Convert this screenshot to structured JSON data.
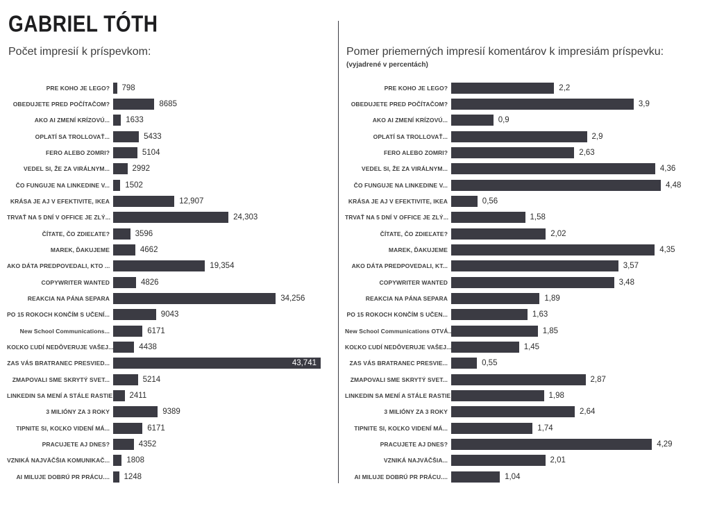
{
  "page_title": "GABRIEL TÓTH",
  "colors": {
    "bar": "#3b3b43",
    "text": "#3c3c3c",
    "inline_value": "#ffffff"
  },
  "chart_data": [
    {
      "type": "bar",
      "orientation": "horizontal",
      "title": "Počet impresií k príspevkom:",
      "subtitle": "",
      "categories": [
        "PRE KOHO JE LEGO?",
        "OBEDUJETE PRED POČÍTAČOM?",
        "AKO AI ZMENÍ KRÍZOVÚ...",
        "OPLATÍ SA TROLLOVAŤ...",
        "FERO ALEBO ZOMRI?",
        "VEDEL SI, ŽE ZA VIRÁLNYM...",
        "ČO FUNGUJE NA LINKEDINE V...",
        "KRÁSA JE AJ V EFEKTIVITE, IKEA",
        "TRVAŤ NA 5 DNÍ V OFFICE JE ZLÝ...",
        "ČÍTATE, ČO ZDIEĽATE?",
        "MAREK, ĎAKUJEME",
        "AKO DÁTA PREDPOVEDALI, KTO ...",
        "COPYWRITER WANTED",
        "REAKCIA NA PÁNA SEPARA",
        "PO 15 ROKOCH KONČÍM S UČENÍ...",
        "New School Communications...",
        "KOĽKO ĽUDÍ NEDÔVERUJE VAŠEJ...",
        "ZAS VÁS BRATRANEC PRESVIED...",
        "ZMAPOVALI SME SKRYTÝ SVET...",
        "LINKEDIN SA MENÍ A STÁLE RASTIE",
        "3 MILIÓNY ZA 3 ROKY",
        "TIPNITE SI, KOĽKO VIDENÍ MÁ...",
        "PRACUJETE AJ DNES?",
        "VZNIKÁ NAJVÄČŠIA KOMUNIKAČ...",
        "AI MILUJE DOBRÚ PR PRÁCU...."
      ],
      "values": [
        798,
        8685,
        1633,
        5433,
        5104,
        2992,
        1502,
        12907,
        24303,
        3596,
        4662,
        19354,
        4826,
        34256,
        9043,
        6171,
        4438,
        43741,
        5214,
        2411,
        9389,
        6171,
        4352,
        1808,
        1248
      ],
      "value_labels": [
        "798",
        "8685",
        "1633",
        "5433",
        "5104",
        "2992",
        "1502",
        "12,907",
        "24,303",
        "3596",
        "4662",
        "19,354",
        "4826",
        "34,256",
        "9043",
        "6171",
        "4438",
        "43,741",
        "5214",
        "2411",
        "9389",
        "6171",
        "4352",
        "1808",
        "1248"
      ],
      "xlim": [
        0,
        43741
      ],
      "grid": false,
      "legend": "none"
    },
    {
      "type": "bar",
      "orientation": "horizontal",
      "title": "Pomer priemerných impresií komentárov k impresiám príspevku:",
      "subtitle": "(vyjadrené v percentách)",
      "categories": [
        "PRE KOHO JE LEGO?",
        "OBEDUJETE PRED POČÍTAČOM?",
        "AKO AI ZMENÍ KRÍZOVÚ...",
        "OPLATÍ SA TROLLOVAŤ...",
        "FERO ALEBO ZOMRI?",
        "VEDEL SI, ŽE ZA VIRÁLNYM...",
        "ČO FUNGUJE NA LINKEDINE V...",
        "KRÁSA JE AJ V EFEKTIVITE, IKEA",
        "TRVAŤ NA 5 DNÍ V OFFICE JE ZLÝ...",
        "ČÍTATE, ČO ZDIEĽATE?",
        "MAREK, ĎAKUJEME",
        "AKO DÁTA PREDPOVEDALI, KT...",
        "COPYWRITER WANTED",
        "REAKCIA NA PÁNA SEPARA",
        "PO 15 ROKOCH KONČÍM S UČEN...",
        "New School Communications OTVÁ...",
        "KOĽKO ĽUDÍ NEDÔVERUJE VAŠEJ...",
        "ZAS VÁS BRATRANEC PRESVIE...",
        "ZMAPOVALI SME SKRYTÝ SVET...",
        "LINKEDIN SA MENÍ A STÁLE RASTIE",
        "3 MILIÓNY ZA 3 ROKY",
        "TIPNITE SI, KOĽKO VIDENÍ MÁ...",
        "PRACUJETE AJ DNES?",
        "VZNIKÁ NAJVÄČŠIA...",
        "AI MILUJE DOBRÚ PR PRÁCU...."
      ],
      "values": [
        2.2,
        3.9,
        0.9,
        2.9,
        2.63,
        4.36,
        4.48,
        0.56,
        1.58,
        2.02,
        4.35,
        3.57,
        3.48,
        1.89,
        1.63,
        1.85,
        1.45,
        0.55,
        2.87,
        1.98,
        2.64,
        1.74,
        4.29,
        2.01,
        1.04
      ],
      "value_labels": [
        "2,2",
        "3,9",
        "0,9",
        "2,9",
        "2,63",
        "4,36",
        "4,48",
        "0,56",
        "1,58",
        "2,02",
        "4,35",
        "3,57",
        "3,48",
        "1,89",
        "1,63",
        "1,85",
        "1,45",
        "0,55",
        "2,87",
        "1,98",
        "2,64",
        "1,74",
        "4,29",
        "2,01",
        "1,04"
      ],
      "xlim": [
        0,
        4.48
      ],
      "grid": false,
      "legend": "none"
    }
  ]
}
